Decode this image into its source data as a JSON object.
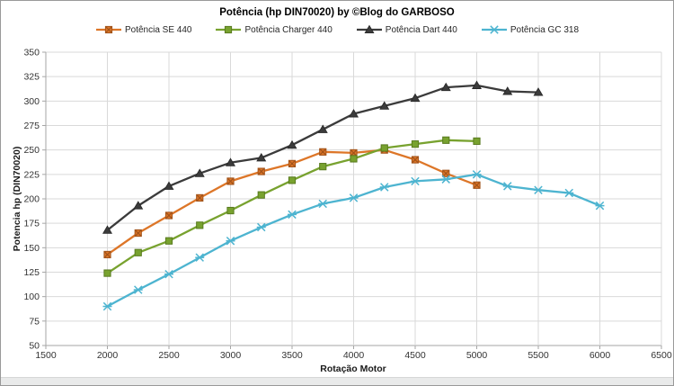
{
  "chart_data": {
    "type": "line",
    "title": "Potência (hp DIN70020) by ©Blog do GARBOSO",
    "xlabel": "Rotação Motor",
    "ylabel": "Potencia hp (DIN70020)",
    "xlim": [
      1500,
      6500
    ],
    "ylim": [
      50,
      350
    ],
    "x_ticks": [
      1500,
      2000,
      2500,
      3000,
      3500,
      4000,
      4500,
      5000,
      5500,
      6000,
      6500
    ],
    "y_ticks": [
      50,
      75,
      100,
      125,
      150,
      175,
      200,
      225,
      250,
      275,
      300,
      325,
      350
    ],
    "grid": true,
    "legend_position": "top-center",
    "colors": {
      "grid": "#d9d9d9",
      "axis": "#a6a6a6",
      "tick_text": "#333333",
      "title_text": "#000000"
    },
    "series": [
      {
        "name": "Potência SE 440",
        "color": "#dd7628",
        "marker": "square-x",
        "marker_border": "#a1531a",
        "points": [
          [
            2000,
            143
          ],
          [
            2250,
            165
          ],
          [
            2500,
            183
          ],
          [
            2750,
            201
          ],
          [
            3000,
            218
          ],
          [
            3250,
            228
          ],
          [
            3500,
            236
          ],
          [
            3750,
            248
          ],
          [
            4000,
            247
          ],
          [
            4250,
            250
          ],
          [
            4500,
            240
          ],
          [
            4750,
            226
          ],
          [
            5000,
            214
          ]
        ]
      },
      {
        "name": "Potência Charger 440",
        "color": "#78a22f",
        "marker": "square",
        "marker_border": "#587a1e",
        "points": [
          [
            2000,
            124
          ],
          [
            2250,
            145
          ],
          [
            2500,
            157
          ],
          [
            2750,
            173
          ],
          [
            3000,
            188
          ],
          [
            3250,
            204
          ],
          [
            3500,
            219
          ],
          [
            3750,
            233
          ],
          [
            4000,
            241
          ],
          [
            4250,
            252
          ],
          [
            4500,
            256
          ],
          [
            4750,
            260
          ],
          [
            5000,
            259
          ]
        ]
      },
      {
        "name": "Potência Dart 440",
        "color": "#3b3b3b",
        "marker": "triangle",
        "marker_border": "#262626",
        "points": [
          [
            2000,
            168
          ],
          [
            2250,
            193
          ],
          [
            2500,
            213
          ],
          [
            2750,
            226
          ],
          [
            3000,
            237
          ],
          [
            3250,
            242
          ],
          [
            3500,
            255
          ],
          [
            3750,
            271
          ],
          [
            4000,
            287
          ],
          [
            4250,
            295
          ],
          [
            4500,
            303
          ],
          [
            4750,
            314
          ],
          [
            5000,
            316
          ],
          [
            5250,
            310
          ],
          [
            5500,
            309
          ]
        ]
      },
      {
        "name": "Potência GC 318",
        "color": "#4db4d0",
        "marker": "asterisk",
        "marker_border": "#3795b0",
        "points": [
          [
            2000,
            90
          ],
          [
            2250,
            107
          ],
          [
            2500,
            123
          ],
          [
            2750,
            140
          ],
          [
            3000,
            157
          ],
          [
            3250,
            171
          ],
          [
            3500,
            184
          ],
          [
            3750,
            195
          ],
          [
            4000,
            201
          ],
          [
            4250,
            212
          ],
          [
            4500,
            218
          ],
          [
            4750,
            220
          ],
          [
            5000,
            225
          ],
          [
            5250,
            213
          ],
          [
            5500,
            209
          ],
          [
            5750,
            206
          ],
          [
            6000,
            193
          ]
        ]
      }
    ]
  }
}
